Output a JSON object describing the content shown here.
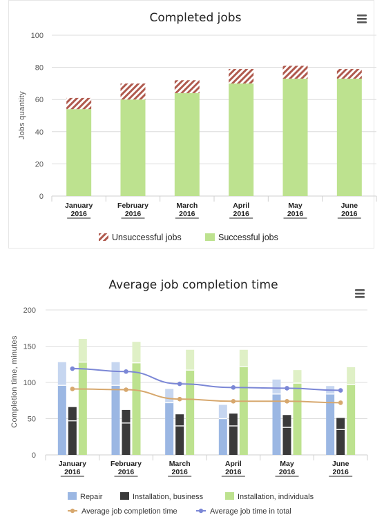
{
  "chart_data": [
    {
      "type": "bar",
      "stacked": true,
      "title": "Completed jobs",
      "ylabel": "Jobs quantity",
      "xlabel": "",
      "ylim": [
        0,
        100
      ],
      "yticks": [
        0,
        20,
        40,
        60,
        80,
        100
      ],
      "grid": true,
      "legend_position": "bottom",
      "categories": [
        [
          "January",
          "2016"
        ],
        [
          "February",
          "2016"
        ],
        [
          "March",
          "2016"
        ],
        [
          "April",
          "2016"
        ],
        [
          "May",
          "2016"
        ],
        [
          "June",
          "2016"
        ]
      ],
      "series": [
        {
          "name": "Successful jobs",
          "color": "#bde28f",
          "values": [
            54,
            60,
            64,
            70,
            73,
            73
          ]
        },
        {
          "name": "Unsuccessful jobs",
          "color": "#b05a4e",
          "pattern": "hatched",
          "values": [
            7,
            10,
            8,
            9,
            8,
            6
          ]
        }
      ],
      "legend": [
        "Unsuccessful jobs",
        "Successful jobs"
      ]
    },
    {
      "type": "bar",
      "title": "Average job completion time",
      "ylabel": "Completion time, minutes",
      "xlabel": "",
      "ylim": [
        0,
        200
      ],
      "yticks": [
        0,
        50,
        100,
        150,
        200
      ],
      "grid": true,
      "legend_position": "bottom",
      "categories": [
        [
          "January",
          "2016"
        ],
        [
          "February",
          "2016"
        ],
        [
          "March",
          "2016"
        ],
        [
          "April",
          "2016"
        ],
        [
          "May",
          "2016"
        ],
        [
          "June",
          "2016"
        ]
      ],
      "bar_series": [
        {
          "name": "Repair",
          "color": "#9bb7e3",
          "light": "#c6d6f0",
          "base": [
            96,
            96,
            72,
            50,
            84,
            84
          ],
          "total": [
            128,
            128,
            91,
            69,
            104,
            95
          ]
        },
        {
          "name": "Installation, business",
          "color": "#3a3a3a",
          "light": "#3a3a3a",
          "base": [
            47,
            44,
            40,
            40,
            38,
            35
          ],
          "total": [
            66,
            62,
            56,
            57,
            55,
            51
          ]
        },
        {
          "name": "Installation, individuals",
          "color": "#bde28f",
          "light": "#dff0c6",
          "base": [
            128,
            127,
            117,
            122,
            99,
            97
          ],
          "total": [
            160,
            156,
            145,
            145,
            117,
            121
          ]
        }
      ],
      "line_series": [
        {
          "name": "Average job completion time",
          "color": "#d7a86e",
          "values": [
            91,
            90,
            77,
            74,
            74,
            72
          ]
        },
        {
          "name": "Average job time in total",
          "color": "#7b87d6",
          "values": [
            119,
            115,
            98,
            93,
            92,
            89
          ]
        }
      ],
      "legend": [
        "Repair",
        "Installation, business",
        "Installation, individuals",
        "Average job completion time",
        "Average job time in total"
      ]
    }
  ],
  "menu_icons": [
    "hamburger-menu-icon",
    "hamburger-menu-icon"
  ]
}
